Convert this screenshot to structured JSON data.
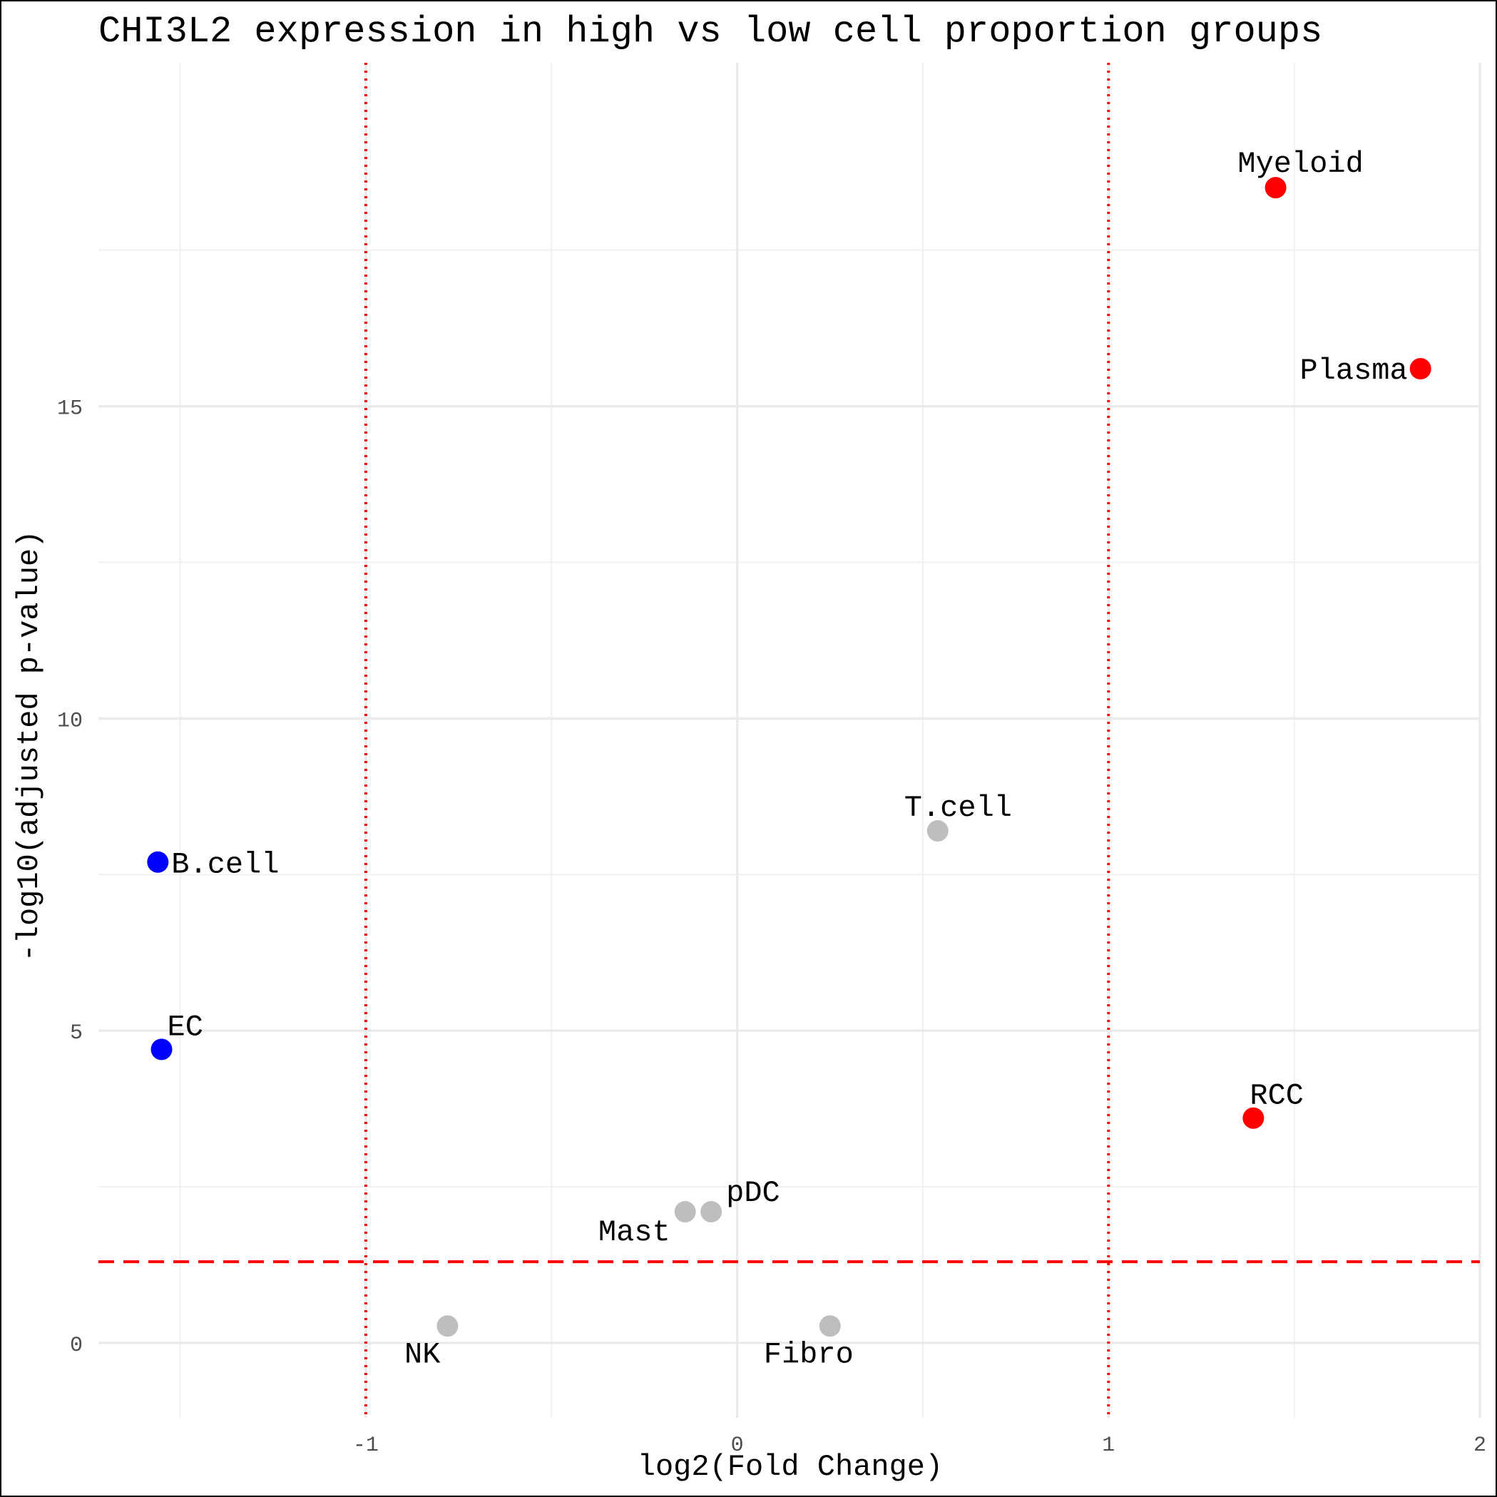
{
  "chart_data": {
    "type": "scatter",
    "title": "CHI3L2 expression in high vs low cell proportion groups",
    "xlabel": "log2(Fold Change)",
    "ylabel": "-log10(adjusted p-value)",
    "xlim": [
      -1.72,
      2.0
    ],
    "ylim": [
      -1.2,
      20.5
    ],
    "x_ticks": [
      -1,
      0,
      1,
      2
    ],
    "y_ticks": [
      0,
      5,
      10,
      15
    ],
    "x_minor_ticks": [
      -1.5,
      -0.5,
      0.5,
      1.5
    ],
    "y_minor_ticks": [
      2.5,
      7.5,
      12.5,
      17.5
    ],
    "grid": true,
    "reference_lines": {
      "vertical": [
        -1,
        1
      ],
      "vertical_style": "dotted",
      "horizontal": [
        1.3
      ],
      "horizontal_style": "dashed",
      "color": "#ff0000"
    },
    "colors": {
      "up": "#ff0000",
      "down": "#0000ff",
      "ns": "#bebebe"
    },
    "points": [
      {
        "label": "Myeloid",
        "x": 1.45,
        "y": 18.5,
        "group": "up"
      },
      {
        "label": "Plasma",
        "x": 1.84,
        "y": 15.6,
        "group": "up"
      },
      {
        "label": "RCC",
        "x": 1.39,
        "y": 3.6,
        "group": "up"
      },
      {
        "label": "T.cell",
        "x": 0.54,
        "y": 8.2,
        "group": "ns"
      },
      {
        "label": "B.cell",
        "x": -1.56,
        "y": 7.7,
        "group": "down"
      },
      {
        "label": "EC",
        "x": -1.55,
        "y": 4.7,
        "group": "down"
      },
      {
        "label": "pDC",
        "x": -0.07,
        "y": 2.1,
        "group": "ns"
      },
      {
        "label": "Mast",
        "x": -0.14,
        "y": 2.1,
        "group": "ns"
      },
      {
        "label": "NK",
        "x": -0.78,
        "y": 0.27,
        "group": "ns"
      },
      {
        "label": "Fibro",
        "x": 0.25,
        "y": 0.27,
        "group": "ns"
      }
    ]
  }
}
